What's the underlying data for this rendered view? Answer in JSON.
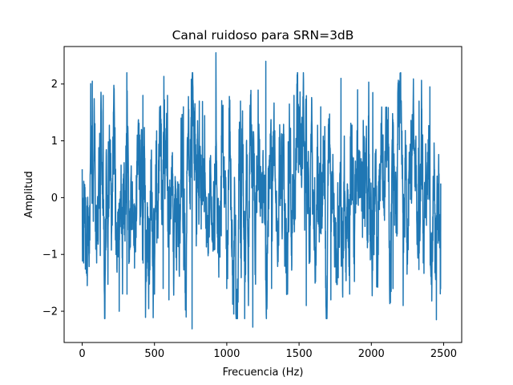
{
  "chart_data": {
    "type": "line",
    "title": "Canal ruidoso para SRN=3dB",
    "xlabel": "Frecuencia (Hz)",
    "ylabel": "Amplitud",
    "xlim": [
      -125,
      2625
    ],
    "ylim": [
      -2.55,
      2.66
    ],
    "x_ticks": [
      0,
      500,
      1000,
      1500,
      2000,
      2500
    ],
    "x_tick_labels": [
      "0",
      "500",
      "1000",
      "1500",
      "2000",
      "2500"
    ],
    "y_ticks": [
      -2,
      -1,
      0,
      1,
      2
    ],
    "y_tick_labels": [
      "−2",
      "−1",
      "0",
      "1",
      "2"
    ],
    "grid": false,
    "legend": "none",
    "series": [
      {
        "color": "#1f77b4",
        "x_start": 0,
        "x_end": 2480,
        "y_min": -2.31,
        "y_max": 2.55,
        "anchors": [
          {
            "x": 0,
            "y": 0.5
          },
          {
            "x": 10,
            "y": -1.15
          },
          {
            "x": 35,
            "y": -1.55
          },
          {
            "x": 70,
            "y": 2.05
          },
          {
            "x": 125,
            "y": -1.02
          },
          {
            "x": 145,
            "y": 1.8
          },
          {
            "x": 190,
            "y": 0.3
          },
          {
            "x": 310,
            "y": -1.7
          },
          {
            "x": 420,
            "y": 1.8
          },
          {
            "x": 500,
            "y": -1.7
          },
          {
            "x": 560,
            "y": -1.6
          },
          {
            "x": 590,
            "y": 1.8
          },
          {
            "x": 600,
            "y": -1.8
          },
          {
            "x": 700,
            "y": 1.6
          },
          {
            "x": 760,
            "y": -2.31
          },
          {
            "x": 810,
            "y": 1.7
          },
          {
            "x": 925,
            "y": 2.55
          },
          {
            "x": 1000,
            "y": -1.6
          },
          {
            "x": 1095,
            "y": 1.7
          },
          {
            "x": 1150,
            "y": -1.9
          },
          {
            "x": 1180,
            "y": -2.28
          },
          {
            "x": 1270,
            "y": 2.4
          },
          {
            "x": 1310,
            "y": -1.6
          },
          {
            "x": 1420,
            "y": -1.7
          },
          {
            "x": 1465,
            "y": 1.8
          },
          {
            "x": 1550,
            "y": -1.9
          },
          {
            "x": 1650,
            "y": 1.6
          },
          {
            "x": 1720,
            "y": -1.8
          },
          {
            "x": 1790,
            "y": 2.1
          },
          {
            "x": 1850,
            "y": -1.7
          },
          {
            "x": 1905,
            "y": 1.9
          },
          {
            "x": 2010,
            "y": 1.85
          },
          {
            "x": 2150,
            "y": -1.6
          },
          {
            "x": 2220,
            "y": -1.9
          },
          {
            "x": 2330,
            "y": 1.7
          },
          {
            "x": 2405,
            "y": 1.95
          },
          {
            "x": 2450,
            "y": -2.15
          },
          {
            "x": 2480,
            "y": 0.25
          }
        ]
      }
    ]
  }
}
